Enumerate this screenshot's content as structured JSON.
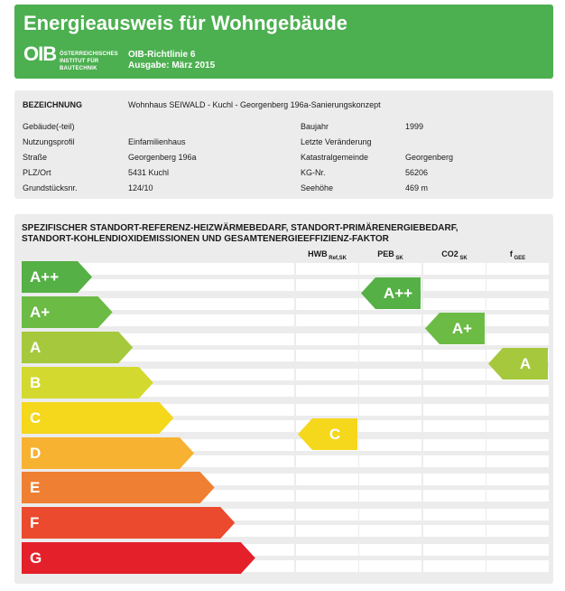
{
  "header": {
    "title": "Energieausweis für Wohngebäude",
    "logo_text": "OIB",
    "institute_line1": "ÖSTERREICHISCHES",
    "institute_line2": "INSTITUT FÜR BAUTECHNIK",
    "guideline_line1": "OIB-Richtlinie 6",
    "guideline_line2": "Ausgabe: März 2015"
  },
  "info": {
    "bezeichnung_label": "BEZEICHNUNG",
    "bezeichnung_value": "Wohnhaus SEIWALD - Kuchl - Georgenberg 196a-Sanierungskonzept",
    "left": [
      {
        "label": "Gebäude(-teil)",
        "value": ""
      },
      {
        "label": "Nutzungsprofil",
        "value": "Einfamilienhaus"
      },
      {
        "label": "Straße",
        "value": "Georgenberg 196a"
      },
      {
        "label": "PLZ/Ort",
        "value": "5431 Kuchl"
      },
      {
        "label": "Grundstücksnr.",
        "value": "124/10"
      }
    ],
    "right": [
      {
        "label": "Baujahr",
        "value": "1999"
      },
      {
        "label": "Letzte Veränderung",
        "value": ""
      },
      {
        "label": "Katastralgemeinde",
        "value": "Georgenberg"
      },
      {
        "label": "KG-Nr.",
        "value": "56206"
      },
      {
        "label": "Seehöhe",
        "value": "469 m"
      }
    ]
  },
  "rating": {
    "title_line1": "SPEZIFISCHER STANDORT-REFERENZ-HEIZWÄRMEBEDARF, STANDORT-PRIMÄRENERGIEBEDARF,",
    "title_line2": "STANDORT-KOHLENDIOXIDEMISSIONEN UND GESAMTENERGIEEFFIZIENZ-FAKTOR",
    "columns": [
      {
        "main": "HWB",
        "sub": "Ref,SK"
      },
      {
        "main": "PEB",
        "sub": "SK"
      },
      {
        "main": "CO2",
        "sub": "SK"
      },
      {
        "main": "f",
        "sub": "GEE"
      }
    ],
    "classes": [
      {
        "label": "A++",
        "color": "#55b046"
      },
      {
        "label": "A+",
        "color": "#6cbb45"
      },
      {
        "label": "A",
        "color": "#a6c83c"
      },
      {
        "label": "B",
        "color": "#d3d92e"
      },
      {
        "label": "C",
        "color": "#f5d71c"
      },
      {
        "label": "D",
        "color": "#f8b232"
      },
      {
        "label": "E",
        "color": "#ef7f32"
      },
      {
        "label": "F",
        "color": "#eb4a2e"
      },
      {
        "label": "G",
        "color": "#e4202b"
      }
    ],
    "results": [
      {
        "column": "HWB",
        "class": "C",
        "color": "#f5d71c"
      },
      {
        "column": "PEB",
        "class": "A++",
        "color": "#55b046"
      },
      {
        "column": "CO2",
        "class": "A+",
        "color": "#6cbb45"
      },
      {
        "column": "fGEE",
        "class": "A",
        "color": "#a6c83c"
      }
    ]
  }
}
